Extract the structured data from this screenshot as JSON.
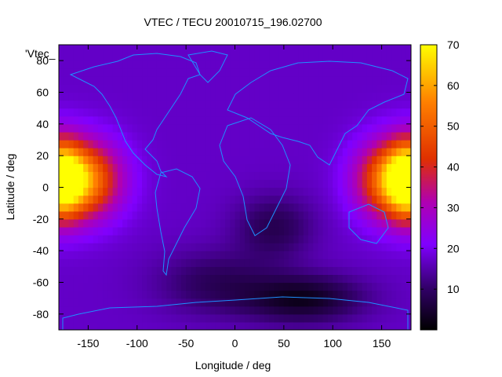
{
  "chart_data": {
    "type": "heatmap",
    "title": "VTEC / TECU 20010715_196.02700",
    "xlabel": "Longitude / deg",
    "ylabel": "Latitude / deg",
    "key_label": "'Vtec_",
    "xlim": [
      -180,
      180
    ],
    "ylim": [
      -90,
      90
    ],
    "x_ticks": [
      -150,
      -100,
      -50,
      0,
      50,
      100,
      150
    ],
    "y_ticks": [
      -80,
      -60,
      -40,
      -20,
      0,
      20,
      40,
      60,
      80
    ],
    "colorbar": {
      "min": 0,
      "max": 70,
      "ticks": [
        10,
        20,
        30,
        40,
        50,
        60,
        70
      ]
    },
    "palette": [
      "#000000",
      "#33006b",
      "#8000ff",
      "#b000b0",
      "#e03000",
      "#ff8000",
      "#ffff00"
    ],
    "coastline_color": "#1e90ff",
    "grid": false,
    "field": {
      "description_model": "gaussian blobs in data units",
      "base_vtec": 17,
      "features": [
        {
          "lon": -160,
          "lat": 5,
          "lon_sigma": 40,
          "lat_sigma": 24,
          "amp": 45
        },
        {
          "lon": -180,
          "lat": 5,
          "lon_sigma": 22,
          "lat_sigma": 24,
          "amp": 38
        },
        {
          "lon": 165,
          "lat": 5,
          "lon_sigma": 38,
          "lat_sigma": 24,
          "amp": 45
        },
        {
          "lon": 180,
          "lat": 5,
          "lon_sigma": 22,
          "lat_sigma": 24,
          "amp": 38
        },
        {
          "lon": 40,
          "lat": -25,
          "lon_sigma": 40,
          "lat_sigma": 20,
          "amp": -9
        },
        {
          "lon": 70,
          "lat": -70,
          "lon_sigma": 60,
          "lat_sigma": 15,
          "amp": -14
        },
        {
          "lon": -20,
          "lat": -60,
          "lon_sigma": 60,
          "lat_sigma": 20,
          "amp": -8
        }
      ]
    }
  }
}
